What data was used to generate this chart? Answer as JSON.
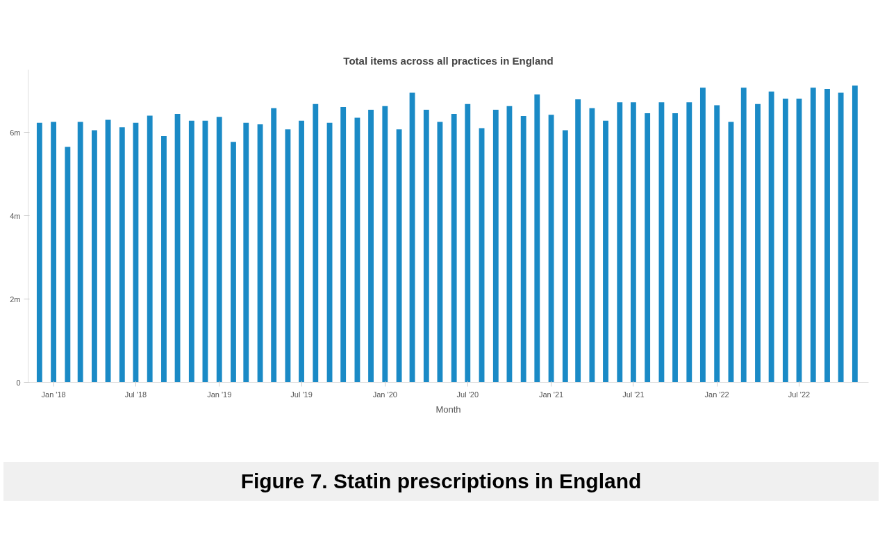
{
  "chart_data": {
    "type": "bar",
    "title": "Total items across all practices in England",
    "xlabel": "Month",
    "annotations": [
      "Figure 7. Statin prescriptions in England"
    ],
    "x": [
      "2017-12",
      "2018-01",
      "2018-02",
      "2018-03",
      "2018-04",
      "2018-05",
      "2018-06",
      "2018-07",
      "2018-08",
      "2018-09",
      "2018-10",
      "2018-11",
      "2018-12",
      "2019-01",
      "2019-02",
      "2019-03",
      "2019-04",
      "2019-05",
      "2019-06",
      "2019-07",
      "2019-08",
      "2019-09",
      "2019-10",
      "2019-11",
      "2019-12",
      "2020-01",
      "2020-02",
      "2020-03",
      "2020-04",
      "2020-05",
      "2020-06",
      "2020-07",
      "2020-08",
      "2020-09",
      "2020-10",
      "2020-11",
      "2020-12",
      "2021-01",
      "2021-02",
      "2021-03",
      "2021-04",
      "2021-05",
      "2021-06",
      "2021-07",
      "2021-08",
      "2021-09",
      "2021-10",
      "2021-11",
      "2021-12",
      "2022-01",
      "2022-02",
      "2022-03",
      "2022-04",
      "2022-05",
      "2022-06",
      "2022-07",
      "2022-08",
      "2022-09",
      "2022-10",
      "2022-11"
    ],
    "values": [
      6.23,
      6.25,
      5.65,
      6.25,
      6.05,
      6.3,
      6.12,
      6.23,
      6.4,
      5.91,
      6.44,
      6.28,
      6.28,
      6.37,
      5.77,
      6.23,
      6.19,
      6.58,
      6.07,
      6.28,
      6.68,
      6.23,
      6.61,
      6.35,
      6.54,
      6.63,
      6.07,
      6.95,
      6.54,
      6.25,
      6.44,
      6.68,
      6.1,
      6.54,
      6.63,
      6.39,
      6.91,
      6.42,
      6.05,
      6.79,
      6.58,
      6.28,
      6.72,
      6.72,
      6.46,
      6.72,
      6.46,
      6.72,
      7.07,
      6.65,
      6.25,
      7.07,
      6.68,
      6.98,
      6.81,
      6.81,
      7.07,
      7.04,
      6.95,
      7.12
    ],
    "color": "#1a8ac6",
    "xlim": [
      "2017-11-06",
      "2022-12-01"
    ],
    "xticks": [
      {
        "value": "2018-01",
        "label": "Jan '18"
      },
      {
        "value": "2018-07",
        "label": "Jul '18"
      },
      {
        "value": "2019-01",
        "label": "Jan '19"
      },
      {
        "value": "2019-07",
        "label": "Jul '19"
      },
      {
        "value": "2020-01",
        "label": "Jan '20"
      },
      {
        "value": "2020-07",
        "label": "Jul '20"
      },
      {
        "value": "2021-01",
        "label": "Jan '21"
      },
      {
        "value": "2021-07",
        "label": "Jul '21"
      },
      {
        "value": "2022-01",
        "label": "Jan '22"
      },
      {
        "value": "2022-07",
        "label": "Jul '22"
      }
    ],
    "ylim": [
      0,
      7.5
    ],
    "yticks": [
      {
        "value": 0,
        "label": "0"
      },
      {
        "value": 2,
        "label": "2m"
      },
      {
        "value": 4,
        "label": "4m"
      },
      {
        "value": 6,
        "label": "6m"
      }
    ],
    "grid": false
  }
}
